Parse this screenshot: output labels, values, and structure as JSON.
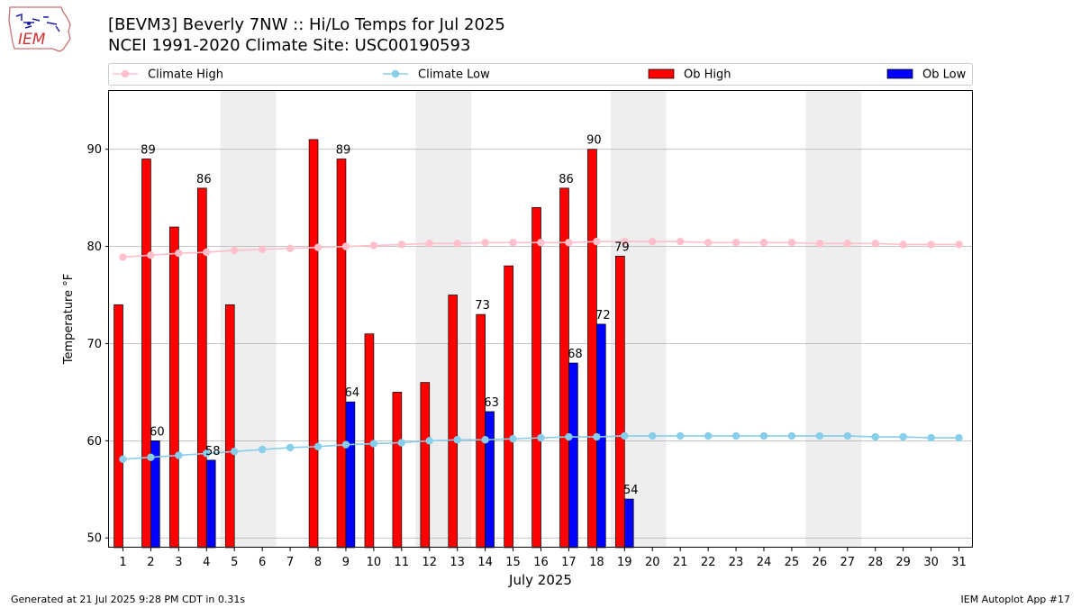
{
  "header": {
    "title_line1": "[BEVM3] Beverly 7NW :: Hi/Lo Temps for Jul 2025",
    "title_line2": "NCEI 1991-2020 Climate Site: USC00190593",
    "logo_text": "IEM"
  },
  "footer": {
    "left": "Generated at 21 Jul 2025 9:28 PM CDT in 0.31s",
    "right": "IEM Autoplot App #17"
  },
  "chart_data": {
    "type": "bar",
    "xlabel": "July 2025",
    "ylabel": "Temperature °F",
    "ylim": [
      49,
      96
    ],
    "yticks": [
      50,
      60,
      70,
      80,
      90
    ],
    "grid": "horizontal",
    "legend_position": "top",
    "categories": [
      "1",
      "2",
      "3",
      "4",
      "5",
      "6",
      "7",
      "8",
      "9",
      "10",
      "11",
      "12",
      "13",
      "14",
      "15",
      "16",
      "17",
      "18",
      "19",
      "20",
      "21",
      "22",
      "23",
      "24",
      "25",
      "26",
      "27",
      "28",
      "29",
      "30",
      "31"
    ],
    "weekend_shading": [
      [
        5,
        6
      ],
      [
        12,
        13
      ],
      [
        19,
        20
      ],
      [
        26,
        27
      ]
    ],
    "colors": {
      "climate_high": "#ffc0cb",
      "climate_low": "#87ceeb",
      "ob_high": "#ff0000",
      "ob_low": "#0000ff",
      "shade": "#eeeeee",
      "grid": "#b0b0b0"
    },
    "series": [
      {
        "name": "Climate High",
        "kind": "line",
        "color": "#ffc0cb",
        "values": [
          78.9,
          79.1,
          79.3,
          79.4,
          79.6,
          79.7,
          79.8,
          79.9,
          80.0,
          80.1,
          80.2,
          80.3,
          80.3,
          80.4,
          80.4,
          80.4,
          80.4,
          80.5,
          80.5,
          80.5,
          80.5,
          80.4,
          80.4,
          80.4,
          80.4,
          80.3,
          80.3,
          80.3,
          80.2,
          80.2,
          80.2
        ]
      },
      {
        "name": "Climate Low",
        "kind": "line",
        "color": "#87ceeb",
        "values": [
          58.1,
          58.3,
          58.5,
          58.7,
          58.9,
          59.1,
          59.3,
          59.4,
          59.6,
          59.7,
          59.8,
          60.0,
          60.1,
          60.1,
          60.2,
          60.3,
          60.4,
          60.4,
          60.5,
          60.5,
          60.5,
          60.5,
          60.5,
          60.5,
          60.5,
          60.5,
          60.5,
          60.4,
          60.4,
          60.3,
          60.3
        ]
      },
      {
        "name": "Ob High",
        "kind": "bar",
        "color": "#ff0000",
        "values": [
          74,
          89,
          82,
          86,
          74,
          null,
          null,
          91,
          89,
          71,
          65,
          66,
          75,
          73,
          78,
          84,
          86,
          90,
          79,
          null,
          null,
          null,
          null,
          null,
          null,
          null,
          null,
          null,
          null,
          null,
          null
        ]
      },
      {
        "name": "Ob Low",
        "kind": "bar",
        "color": "#0000ff",
        "values": [
          null,
          60,
          null,
          58,
          null,
          null,
          null,
          null,
          64,
          null,
          null,
          null,
          null,
          63,
          null,
          null,
          68,
          72,
          54,
          null,
          null,
          null,
          null,
          null,
          null,
          null,
          null,
          null,
          null,
          null,
          null
        ]
      }
    ],
    "annotations": [
      {
        "day": 2,
        "series": "Ob High",
        "text": "89"
      },
      {
        "day": 4,
        "series": "Ob High",
        "text": "86"
      },
      {
        "day": 9,
        "series": "Ob High",
        "text": "89"
      },
      {
        "day": 14,
        "series": "Ob High",
        "text": "73"
      },
      {
        "day": 17,
        "series": "Ob High",
        "text": "86"
      },
      {
        "day": 18,
        "series": "Ob High",
        "text": "90"
      },
      {
        "day": 19,
        "series": "Ob High",
        "text": "79"
      },
      {
        "day": 2,
        "series": "Ob Low",
        "text": "60"
      },
      {
        "day": 4,
        "series": "Ob Low",
        "text": "58"
      },
      {
        "day": 9,
        "series": "Ob Low",
        "text": "64"
      },
      {
        "day": 14,
        "series": "Ob Low",
        "text": "63"
      },
      {
        "day": 17,
        "series": "Ob Low",
        "text": "68"
      },
      {
        "day": 18,
        "series": "Ob Low",
        "text": "72"
      },
      {
        "day": 19,
        "series": "Ob Low",
        "text": "54"
      }
    ]
  }
}
